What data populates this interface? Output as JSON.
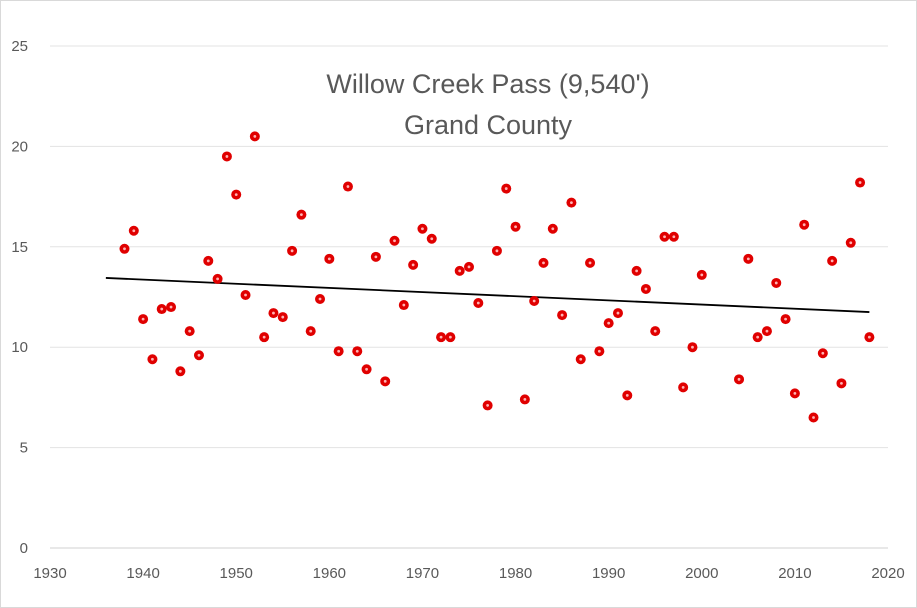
{
  "chart_data": {
    "type": "scatter",
    "title": "Willow Creek Pass (9,540')",
    "subtitle": "Grand County",
    "xlim": [
      1930,
      2020
    ],
    "ylim": [
      0,
      25
    ],
    "x_ticks": [
      1930,
      1940,
      1950,
      1960,
      1970,
      1980,
      1990,
      2000,
      2010,
      2020
    ],
    "y_ticks": [
      0,
      5,
      10,
      15,
      20,
      25
    ],
    "grid": "horizontal",
    "legend": "none",
    "marker_color": "#e00000",
    "trendline_color": "#000000",
    "points": [
      [
        1938,
        14.9
      ],
      [
        1939,
        15.8
      ],
      [
        1940,
        11.4
      ],
      [
        1941,
        9.4
      ],
      [
        1942,
        11.9
      ],
      [
        1943,
        12.0
      ],
      [
        1944,
        8.8
      ],
      [
        1945,
        10.8
      ],
      [
        1946,
        9.6
      ],
      [
        1947,
        14.3
      ],
      [
        1948,
        13.4
      ],
      [
        1949,
        19.5
      ],
      [
        1950,
        17.6
      ],
      [
        1951,
        12.6
      ],
      [
        1952,
        20.5
      ],
      [
        1953,
        10.5
      ],
      [
        1954,
        11.7
      ],
      [
        1955,
        11.5
      ],
      [
        1956,
        14.8
      ],
      [
        1957,
        16.6
      ],
      [
        1958,
        10.8
      ],
      [
        1959,
        12.4
      ],
      [
        1960,
        14.4
      ],
      [
        1961,
        9.8
      ],
      [
        1962,
        18.0
      ],
      [
        1963,
        9.8
      ],
      [
        1964,
        8.9
      ],
      [
        1965,
        14.5
      ],
      [
        1966,
        8.3
      ],
      [
        1967,
        15.3
      ],
      [
        1968,
        12.1
      ],
      [
        1969,
        14.1
      ],
      [
        1970,
        15.9
      ],
      [
        1971,
        15.4
      ],
      [
        1972,
        10.5
      ],
      [
        1973,
        10.5
      ],
      [
        1974,
        13.8
      ],
      [
        1975,
        14.0
      ],
      [
        1976,
        12.2
      ],
      [
        1977,
        7.1
      ],
      [
        1978,
        14.8
      ],
      [
        1979,
        17.9
      ],
      [
        1980,
        16.0
      ],
      [
        1981,
        7.4
      ],
      [
        1982,
        12.3
      ],
      [
        1983,
        14.2
      ],
      [
        1984,
        15.9
      ],
      [
        1985,
        11.6
      ],
      [
        1986,
        17.2
      ],
      [
        1987,
        9.4
      ],
      [
        1988,
        14.2
      ],
      [
        1989,
        9.8
      ],
      [
        1990,
        11.2
      ],
      [
        1991,
        11.7
      ],
      [
        1992,
        7.6
      ],
      [
        1993,
        13.8
      ],
      [
        1994,
        12.9
      ],
      [
        1995,
        10.8
      ],
      [
        1996,
        15.5
      ],
      [
        1997,
        15.5
      ],
      [
        1998,
        8.0
      ],
      [
        1999,
        10.0
      ],
      [
        2000,
        13.6
      ],
      [
        2004,
        8.4
      ],
      [
        2005,
        14.4
      ],
      [
        2006,
        10.5
      ],
      [
        2007,
        10.8
      ],
      [
        2008,
        13.2
      ],
      [
        2009,
        11.4
      ],
      [
        2010,
        7.7
      ],
      [
        2011,
        16.1
      ],
      [
        2012,
        6.5
      ],
      [
        2013,
        9.7
      ],
      [
        2014,
        14.3
      ],
      [
        2015,
        8.2
      ],
      [
        2016,
        15.2
      ],
      [
        2017,
        18.2
      ],
      [
        2018,
        10.5
      ]
    ],
    "trendline": {
      "x": [
        1936,
        2018
      ],
      "y": [
        13.45,
        11.75
      ]
    }
  }
}
